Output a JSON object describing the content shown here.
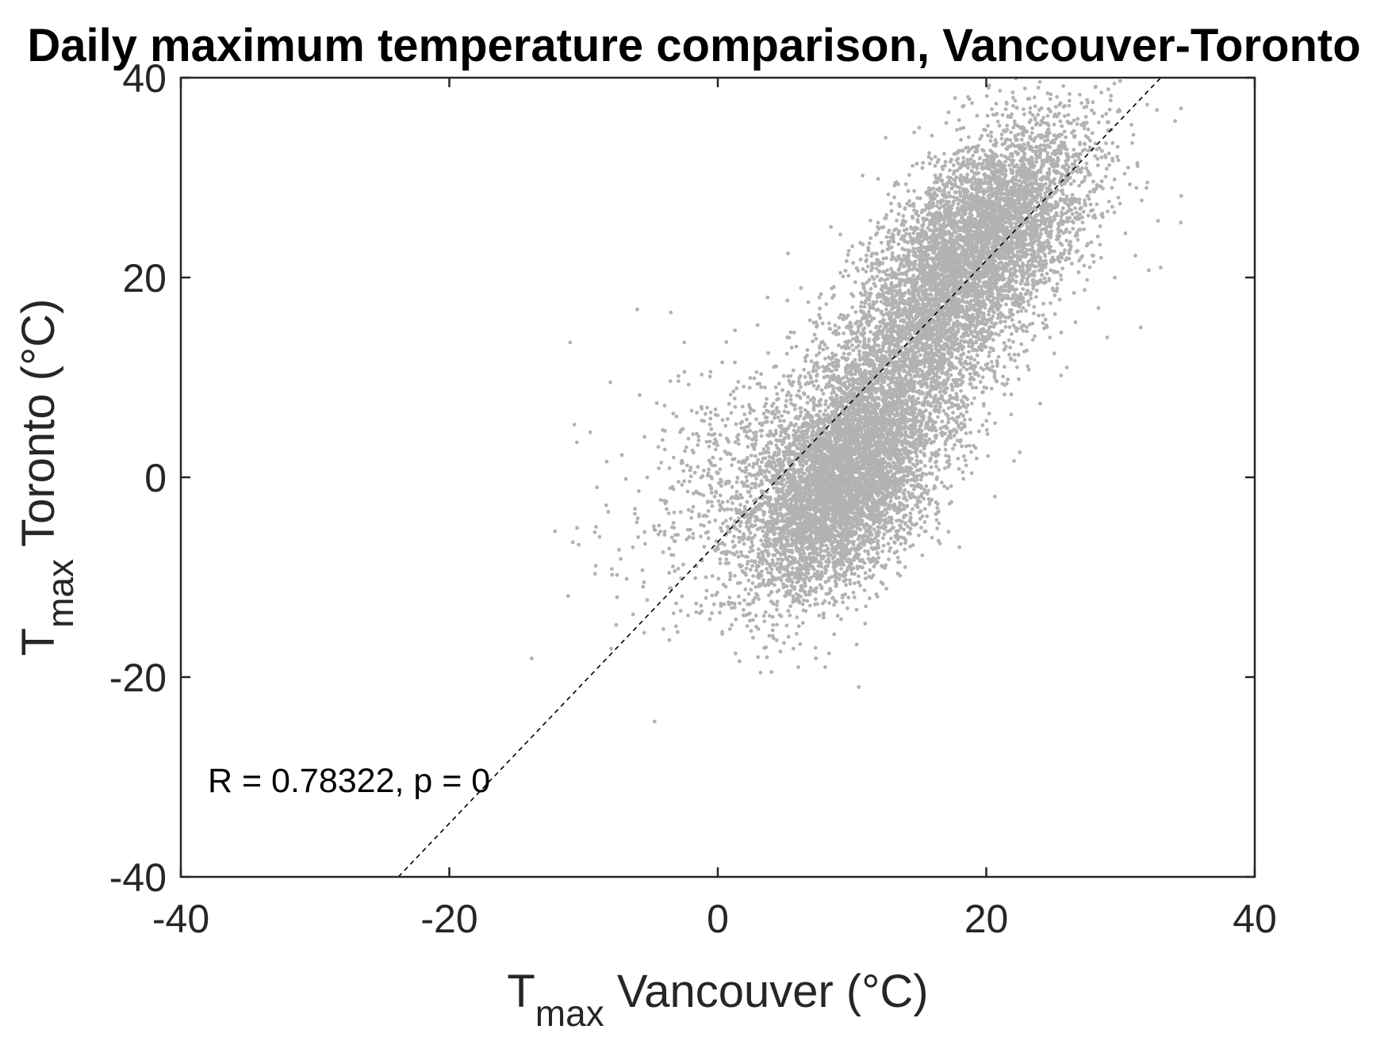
{
  "chart_data": {
    "type": "scatter",
    "title": "Daily maximum temperature comparison, Vancouver-Toronto",
    "xlabel": {
      "main": "T",
      "sub": "max",
      "rest": " Vancouver (°C)"
    },
    "ylabel": {
      "main": "T",
      "sub": "max",
      "rest": " Toronto (°C)"
    },
    "xlim": [
      -40,
      40
    ],
    "ylim": [
      -40,
      40
    ],
    "xticks": [
      -40,
      -20,
      0,
      20,
      40
    ],
    "yticks": [
      -40,
      -20,
      0,
      20,
      40
    ],
    "grid": false,
    "marker_color": "#b2b2b2",
    "trend_line": {
      "x": [
        -23.8,
        33.0
      ],
      "y": [
        -40,
        40
      ],
      "style": "dashed",
      "color": "#000000"
    },
    "annotation": "R = 0.78322, p = 0",
    "series": [
      {
        "approx_point_count": 13000,
        "clusters": [
          {
            "cx": 9,
            "cy": -1,
            "sx": 3.5,
            "sy": 5.5,
            "rho": 0.45,
            "weight": 0.36
          },
          {
            "cx": 19.5,
            "cy": 23.5,
            "sx": 4,
            "sy": 6,
            "rho": 0.55,
            "weight": 0.38
          },
          {
            "cx": 13.5,
            "cy": 10,
            "sx": 4,
            "sy": 7,
            "rho": 0.55,
            "weight": 0.2
          },
          {
            "cx": 3,
            "cy": 0,
            "sx": 5,
            "sy": 6,
            "rho": 0.3,
            "weight": 0.06
          }
        ],
        "outliers": [
          {
            "x": -11,
            "y": 13.5
          },
          {
            "x": -10.8,
            "y": -6.5
          },
          {
            "x": -10.5,
            "y": 3.5
          },
          {
            "x": -9.5,
            "y": 4.5
          },
          {
            "x": -9,
            "y": -1
          },
          {
            "x": -8,
            "y": 9.5
          },
          {
            "x": -7.5,
            "y": -12
          },
          {
            "x": -6,
            "y": 16.8
          },
          {
            "x": -5.5,
            "y": -10.5
          },
          {
            "x": -3.5,
            "y": 16.5
          },
          {
            "x": -2.5,
            "y": 13.5
          },
          {
            "x": 34.5,
            "y": 25.5
          },
          {
            "x": 33,
            "y": 21
          },
          {
            "x": 31.5,
            "y": 15
          },
          {
            "x": 29,
            "y": 14
          },
          {
            "x": 32,
            "y": 29.5
          },
          {
            "x": 10.5,
            "y": -21
          },
          {
            "x": 8,
            "y": -19
          },
          {
            "x": 4,
            "y": -19.5
          },
          {
            "x": 6,
            "y": -19
          },
          {
            "x": 3,
            "y": -18
          },
          {
            "x": 12.5,
            "y": 34
          },
          {
            "x": 15,
            "y": 35
          },
          {
            "x": 21.5,
            "y": 37.5
          },
          {
            "x": 22,
            "y": 38
          },
          {
            "x": 18,
            "y": -7
          },
          {
            "x": 22.5,
            "y": 2.5
          },
          {
            "x": 26,
            "y": 11
          }
        ]
      }
    ]
  }
}
